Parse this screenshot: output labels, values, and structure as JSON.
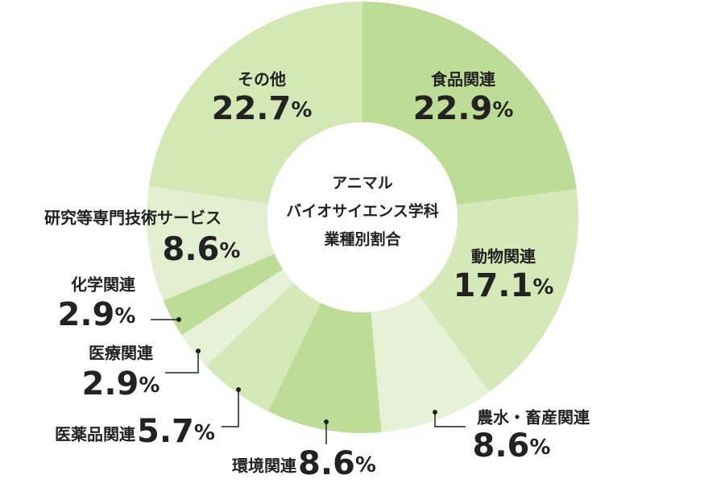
{
  "chart_data": {
    "type": "donut",
    "title_lines": [
      "アニマル",
      "バイオサイエンス学科",
      "業種別割合"
    ],
    "categories": [
      "食品関連",
      "動物関連",
      "農水・畜産関連",
      "環境関連",
      "医薬品関連",
      "医療関連",
      "化学関連",
      "研究等専門技術サービス",
      "その他"
    ],
    "values": [
      22.9,
      17.1,
      8.6,
      8.6,
      5.7,
      2.9,
      2.9,
      8.6,
      22.7
    ],
    "value_labels": [
      "22.9%",
      "17.1%",
      "8.6%",
      "8.6%",
      "5.7%",
      "2.9%",
      "2.9%",
      "8.6%",
      "22.7%"
    ],
    "colors": [
      "#bddc96",
      "#d5e8b8",
      "#e6f1d6",
      "#bddc96",
      "#d5e8b8",
      "#e6f1d6",
      "#bddc96",
      "#e3efd0",
      "#d4e8b6"
    ]
  }
}
